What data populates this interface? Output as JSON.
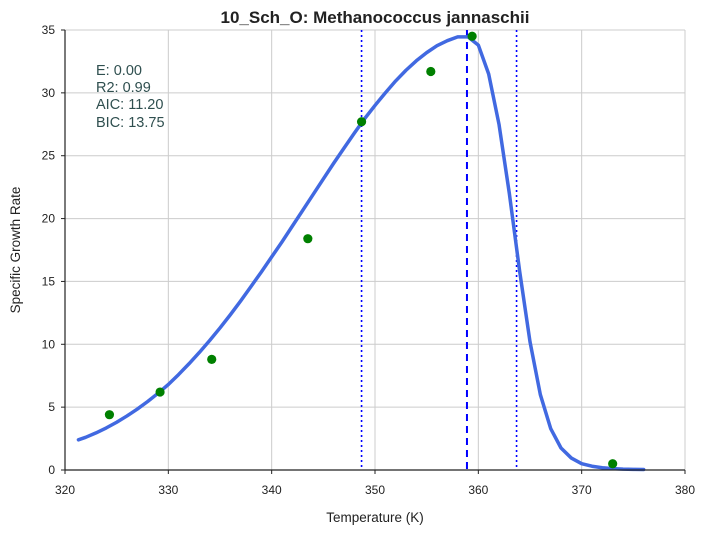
{
  "chart_data": {
    "type": "scatter",
    "title": "10_Sch_O: Methanococcus jannaschii",
    "xlabel": "Temperature (K)",
    "ylabel": "Specific Growth Rate",
    "xlim": [
      320,
      380
    ],
    "ylim": [
      0,
      35
    ],
    "xticks": [
      320,
      330,
      340,
      350,
      360,
      370,
      380
    ],
    "yticks": [
      0,
      5,
      10,
      15,
      20,
      25,
      30,
      35
    ],
    "grid": true,
    "stats_box": {
      "lines": [
        "E:  0.00",
        "R2:  0.99",
        "AIC: 11.20",
        "BIC: 13.75"
      ]
    },
    "observed": {
      "color": "#008000",
      "x": [
        324.3,
        329.2,
        334.2,
        343.5,
        348.7,
        355.4,
        359.4,
        373.0
      ],
      "y": [
        4.4,
        6.2,
        8.8,
        18.4,
        27.7,
        31.7,
        34.5,
        0.5
      ]
    },
    "fit": {
      "color": "#4169e1",
      "x": [
        321.3,
        322,
        323,
        324,
        325,
        326,
        327,
        328,
        329,
        330,
        331,
        332,
        333,
        334,
        335,
        336,
        337,
        338,
        339,
        340,
        341,
        342,
        343,
        344,
        345,
        346,
        347,
        348,
        349,
        350,
        351,
        352,
        353,
        354,
        355,
        356,
        357,
        358,
        359,
        360,
        361,
        362,
        363,
        364,
        365,
        366,
        367,
        368,
        369,
        370,
        371,
        372,
        373,
        374,
        375,
        376
      ],
      "y": [
        2.4,
        2.6,
        2.95,
        3.35,
        3.8,
        4.3,
        4.85,
        5.45,
        6.1,
        6.8,
        7.6,
        8.45,
        9.35,
        10.3,
        11.3,
        12.35,
        13.45,
        14.6,
        15.75,
        16.95,
        18.15,
        19.4,
        20.65,
        21.9,
        23.15,
        24.4,
        25.6,
        26.8,
        27.95,
        29.0,
        30.0,
        30.95,
        31.8,
        32.55,
        33.2,
        33.75,
        34.15,
        34.45,
        34.45,
        33.8,
        31.5,
        27.5,
        22.0,
        15.8,
        10.2,
        6.0,
        3.3,
        1.75,
        0.95,
        0.5,
        0.3,
        0.18,
        0.11,
        0.07,
        0.05,
        0.04
      ]
    },
    "vlines": [
      {
        "x": 358.9,
        "style": "dashed",
        "color": "#0000ff"
      },
      {
        "x": 348.7,
        "style": "dotted",
        "color": "#0000ff"
      },
      {
        "x": 363.7,
        "style": "dotted",
        "color": "#0000ff"
      }
    ]
  }
}
